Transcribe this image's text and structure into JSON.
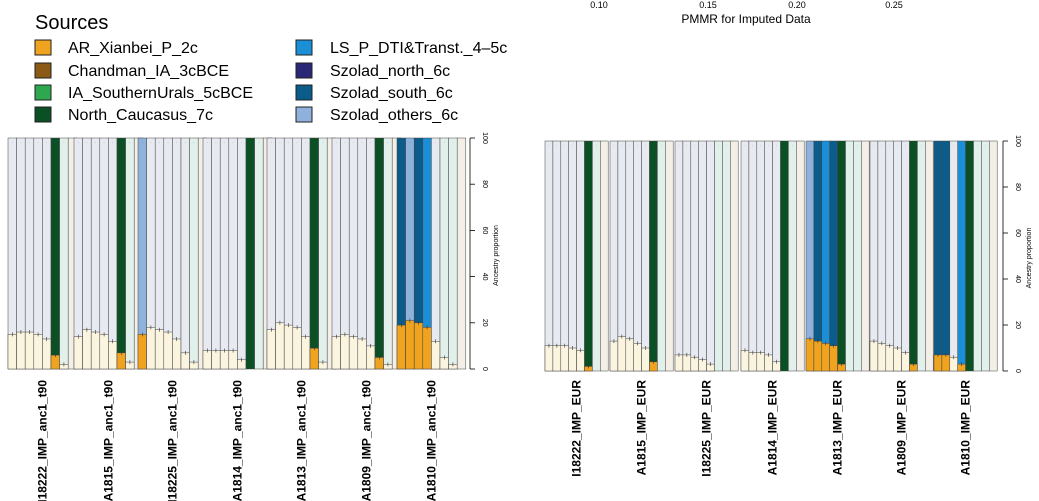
{
  "top_axis": {
    "ticks": [
      "0.10",
      "0.15",
      "0.20",
      "0.25"
    ],
    "label": "PMMR for Imputed Data"
  },
  "legend": {
    "title": "Sources",
    "items": [
      {
        "label": "AR_Xianbei_P_2c",
        "color": "#f0a31f"
      },
      {
        "label": "Chandman_IA_3cBCE",
        "color": "#8b5a14"
      },
      {
        "label": "IA_SouthernUrals_5cBCE",
        "color": "#2ea84f"
      },
      {
        "label": "North_Caucasus_7c",
        "color": "#0b4f24"
      },
      {
        "label": "LS_P_DTI&Transt._4–5c",
        "color": "#1a8fd8"
      },
      {
        "label": "Szolad_north_6c",
        "color": "#2a2777"
      },
      {
        "label": "Szolad_south_6c",
        "color": "#0b5c8a"
      },
      {
        "label": "Szolad_others_6c",
        "color": "#8fb2dc"
      }
    ]
  },
  "chart_data": [
    {
      "type": "bar",
      "stacked": true,
      "panel": "left",
      "ylabel": "Ancestry proportion",
      "ylim": [
        0,
        100
      ],
      "yticks": [
        0,
        20,
        40,
        60,
        80,
        100
      ],
      "colors": {
        "pale_lower": "#fbf4df",
        "grey_upper": "#e7eaf1",
        "mint_upper": "#e1f0ea",
        "pale_full": "#f3efe6"
      },
      "categories": [
        "I18222_IMP_anc1_t90",
        "A1815_IMP_anc1_t90",
        "I18225_IMP_anc1_t90",
        "A1814_IMP_anc1_t90",
        "A1813_IMP_anc1_t90",
        "A1809_IMP_anc1_t90",
        "A1810_IMP_anc1_t90"
      ],
      "groups": [
        {
          "sample": "I18222_IMP_anc1_t90",
          "bars": [
            {
              "type": "pale",
              "value": 15
            },
            {
              "type": "pale",
              "value": 16
            },
            {
              "type": "pale",
              "value": 16
            },
            {
              "type": "pale",
              "value": 15
            },
            {
              "type": "pale",
              "value": 13
            },
            {
              "type": "main",
              "value": 6,
              "fill": "#f0a31f",
              "top": "#0b4f24"
            },
            {
              "type": "mint",
              "value": 2
            },
            {
              "type": "full"
            }
          ]
        },
        {
          "sample": "A1815_IMP_anc1_t90",
          "bars": [
            {
              "type": "pale",
              "value": 14
            },
            {
              "type": "pale",
              "value": 17
            },
            {
              "type": "pale",
              "value": 16
            },
            {
              "type": "pale",
              "value": 15
            },
            {
              "type": "pale",
              "value": 12
            },
            {
              "type": "main",
              "value": 7,
              "fill": "#f0a31f",
              "top": "#0b4f24"
            },
            {
              "type": "mint",
              "value": 3
            },
            {
              "type": "full"
            }
          ]
        },
        {
          "sample": "I18225_IMP_anc1_t90",
          "bars": [
            {
              "type": "main",
              "value": 15,
              "fill": "#f0a31f",
              "top": "#8fb2dc"
            },
            {
              "type": "pale",
              "value": 18
            },
            {
              "type": "pale",
              "value": 17
            },
            {
              "type": "pale",
              "value": 16
            },
            {
              "type": "pale",
              "value": 13
            },
            {
              "type": "pale",
              "value": 7
            },
            {
              "type": "mint",
              "value": 3
            },
            {
              "type": "full"
            }
          ]
        },
        {
          "sample": "A1814_IMP_anc1_t90",
          "bars": [
            {
              "type": "pale",
              "value": 8
            },
            {
              "type": "pale",
              "value": 8
            },
            {
              "type": "pale",
              "value": 8
            },
            {
              "type": "pale",
              "value": 8
            },
            {
              "type": "pale",
              "value": 4
            },
            {
              "type": "main",
              "value": 0,
              "fill": "#f0a31f",
              "top": "#0b4f24"
            },
            {
              "type": "mint",
              "value": 0
            },
            {
              "type": "full"
            }
          ]
        },
        {
          "sample": "A1813_IMP_anc1_t90",
          "bars": [
            {
              "type": "pale",
              "value": 17
            },
            {
              "type": "pale",
              "value": 20
            },
            {
              "type": "pale",
              "value": 19
            },
            {
              "type": "pale",
              "value": 18
            },
            {
              "type": "pale",
              "value": 14
            },
            {
              "type": "main",
              "value": 9,
              "fill": "#f0a31f",
              "top": "#0b4f24"
            },
            {
              "type": "mint",
              "value": 3
            },
            {
              "type": "full"
            }
          ]
        },
        {
          "sample": "A1809_IMP_anc1_t90",
          "bars": [
            {
              "type": "pale",
              "value": 14
            },
            {
              "type": "pale",
              "value": 15
            },
            {
              "type": "pale",
              "value": 14
            },
            {
              "type": "pale",
              "value": 13
            },
            {
              "type": "pale",
              "value": 10
            },
            {
              "type": "main",
              "value": 5,
              "fill": "#f0a31f",
              "top": "#0b4f24"
            },
            {
              "type": "mint",
              "value": 2
            },
            {
              "type": "full"
            }
          ]
        },
        {
          "sample": "A1810_IMP_anc1_t90",
          "bars": [
            {
              "type": "main",
              "value": 19,
              "fill": "#f0a31f",
              "top": "#0b5c8a"
            },
            {
              "type": "main",
              "value": 21,
              "fill": "#f0a31f",
              "top": "#8fb2dc"
            },
            {
              "type": "main",
              "value": 20,
              "fill": "#f0a31f",
              "top": "#0b5c8a"
            },
            {
              "type": "main",
              "value": 18,
              "fill": "#f0a31f",
              "top": "#1a8fd8"
            },
            {
              "type": "pale",
              "value": 12
            },
            {
              "type": "mint",
              "value": 5
            },
            {
              "type": "mint",
              "value": 2
            },
            {
              "type": "full"
            }
          ]
        }
      ]
    },
    {
      "type": "bar",
      "stacked": true,
      "panel": "right",
      "ylabel": "Ancestry proportion",
      "ylim": [
        0,
        100
      ],
      "yticks": [
        0,
        20,
        40,
        60,
        80,
        100
      ],
      "categories": [
        "I18222_IMP_EUR",
        "A1815_IMP_EUR",
        "I18225_IMP_EUR",
        "A1814_IMP_EUR",
        "A1813_IMP_EUR",
        "A1809_IMP_EUR",
        "A1810_IMP_EUR"
      ],
      "groups": [
        {
          "sample": "I18222_IMP_EUR",
          "bars": [
            {
              "type": "pale",
              "value": 11
            },
            {
              "type": "pale",
              "value": 11
            },
            {
              "type": "pale",
              "value": 11
            },
            {
              "type": "pale",
              "value": 10
            },
            {
              "type": "pale",
              "value": 9
            },
            {
              "type": "main",
              "value": 2,
              "fill": "#f0a31f",
              "top": "#0b4f24"
            },
            {
              "type": "mint",
              "value": 0
            },
            {
              "type": "full"
            }
          ]
        },
        {
          "sample": "A1815_IMP_EUR",
          "bars": [
            {
              "type": "pale",
              "value": 13
            },
            {
              "type": "pale",
              "value": 15
            },
            {
              "type": "pale",
              "value": 14
            },
            {
              "type": "pale",
              "value": 12
            },
            {
              "type": "pale",
              "value": 10
            },
            {
              "type": "main",
              "value": 4,
              "fill": "#f0a31f",
              "top": "#0b4f24"
            },
            {
              "type": "mint",
              "value": 0
            },
            {
              "type": "full"
            }
          ]
        },
        {
          "sample": "I18225_IMP_EUR",
          "bars": [
            {
              "type": "pale",
              "value": 7
            },
            {
              "type": "pale",
              "value": 7
            },
            {
              "type": "pale",
              "value": 6
            },
            {
              "type": "pale",
              "value": 5
            },
            {
              "type": "pale",
              "value": 3
            },
            {
              "type": "mint",
              "value": 0
            },
            {
              "type": "mint",
              "value": 0
            },
            {
              "type": "full"
            }
          ]
        },
        {
          "sample": "A1814_IMP_EUR",
          "bars": [
            {
              "type": "pale",
              "value": 9
            },
            {
              "type": "pale",
              "value": 8
            },
            {
              "type": "pale",
              "value": 8
            },
            {
              "type": "pale",
              "value": 7
            },
            {
              "type": "pale",
              "value": 4
            },
            {
              "type": "main",
              "value": 0,
              "fill": "#f0a31f",
              "top": "#0b4f24"
            },
            {
              "type": "mint",
              "value": 0
            },
            {
              "type": "full"
            }
          ]
        },
        {
          "sample": "A1813_IMP_EUR",
          "bars": [
            {
              "type": "main",
              "value": 14,
              "fill": "#f0a31f",
              "top": "#8fb2dc"
            },
            {
              "type": "main",
              "value": 13,
              "fill": "#f0a31f",
              "top": "#0b5c8a"
            },
            {
              "type": "main",
              "value": 12,
              "fill": "#f0a31f",
              "top": "#1a8fd8"
            },
            {
              "type": "main",
              "value": 11,
              "fill": "#f0a31f",
              "top": "#0b5c8a"
            },
            {
              "type": "main",
              "value": 3,
              "fill": "#f0a31f",
              "top": "#0b4f24"
            },
            {
              "type": "mint",
              "value": 0
            },
            {
              "type": "mint",
              "value": 0
            },
            {
              "type": "full"
            }
          ]
        },
        {
          "sample": "A1809_IMP_EUR",
          "bars": [
            {
              "type": "pale",
              "value": 13
            },
            {
              "type": "pale",
              "value": 12
            },
            {
              "type": "pale",
              "value": 11
            },
            {
              "type": "pale",
              "value": 10
            },
            {
              "type": "pale",
              "value": 8
            },
            {
              "type": "main",
              "value": 3,
              "fill": "#f0a31f",
              "top": "#0b4f24"
            },
            {
              "type": "mint",
              "value": 0
            },
            {
              "type": "full"
            }
          ]
        },
        {
          "sample": "A1810_IMP_EUR",
          "bars": [
            {
              "type": "main",
              "value": 7,
              "fill": "#f0a31f",
              "top": "#0b5c8a"
            },
            {
              "type": "main",
              "value": 7,
              "fill": "#f0a31f",
              "top": "#0b5c8a"
            },
            {
              "type": "pale",
              "value": 6
            },
            {
              "type": "main",
              "value": 3,
              "fill": "#f0a31f",
              "top": "#1a8fd8"
            },
            {
              "type": "main",
              "value": 0,
              "fill": "#f0a31f",
              "top": "#0b4f24"
            },
            {
              "type": "mint",
              "value": 0
            },
            {
              "type": "mint",
              "value": 0
            },
            {
              "type": "full"
            }
          ]
        }
      ]
    }
  ]
}
